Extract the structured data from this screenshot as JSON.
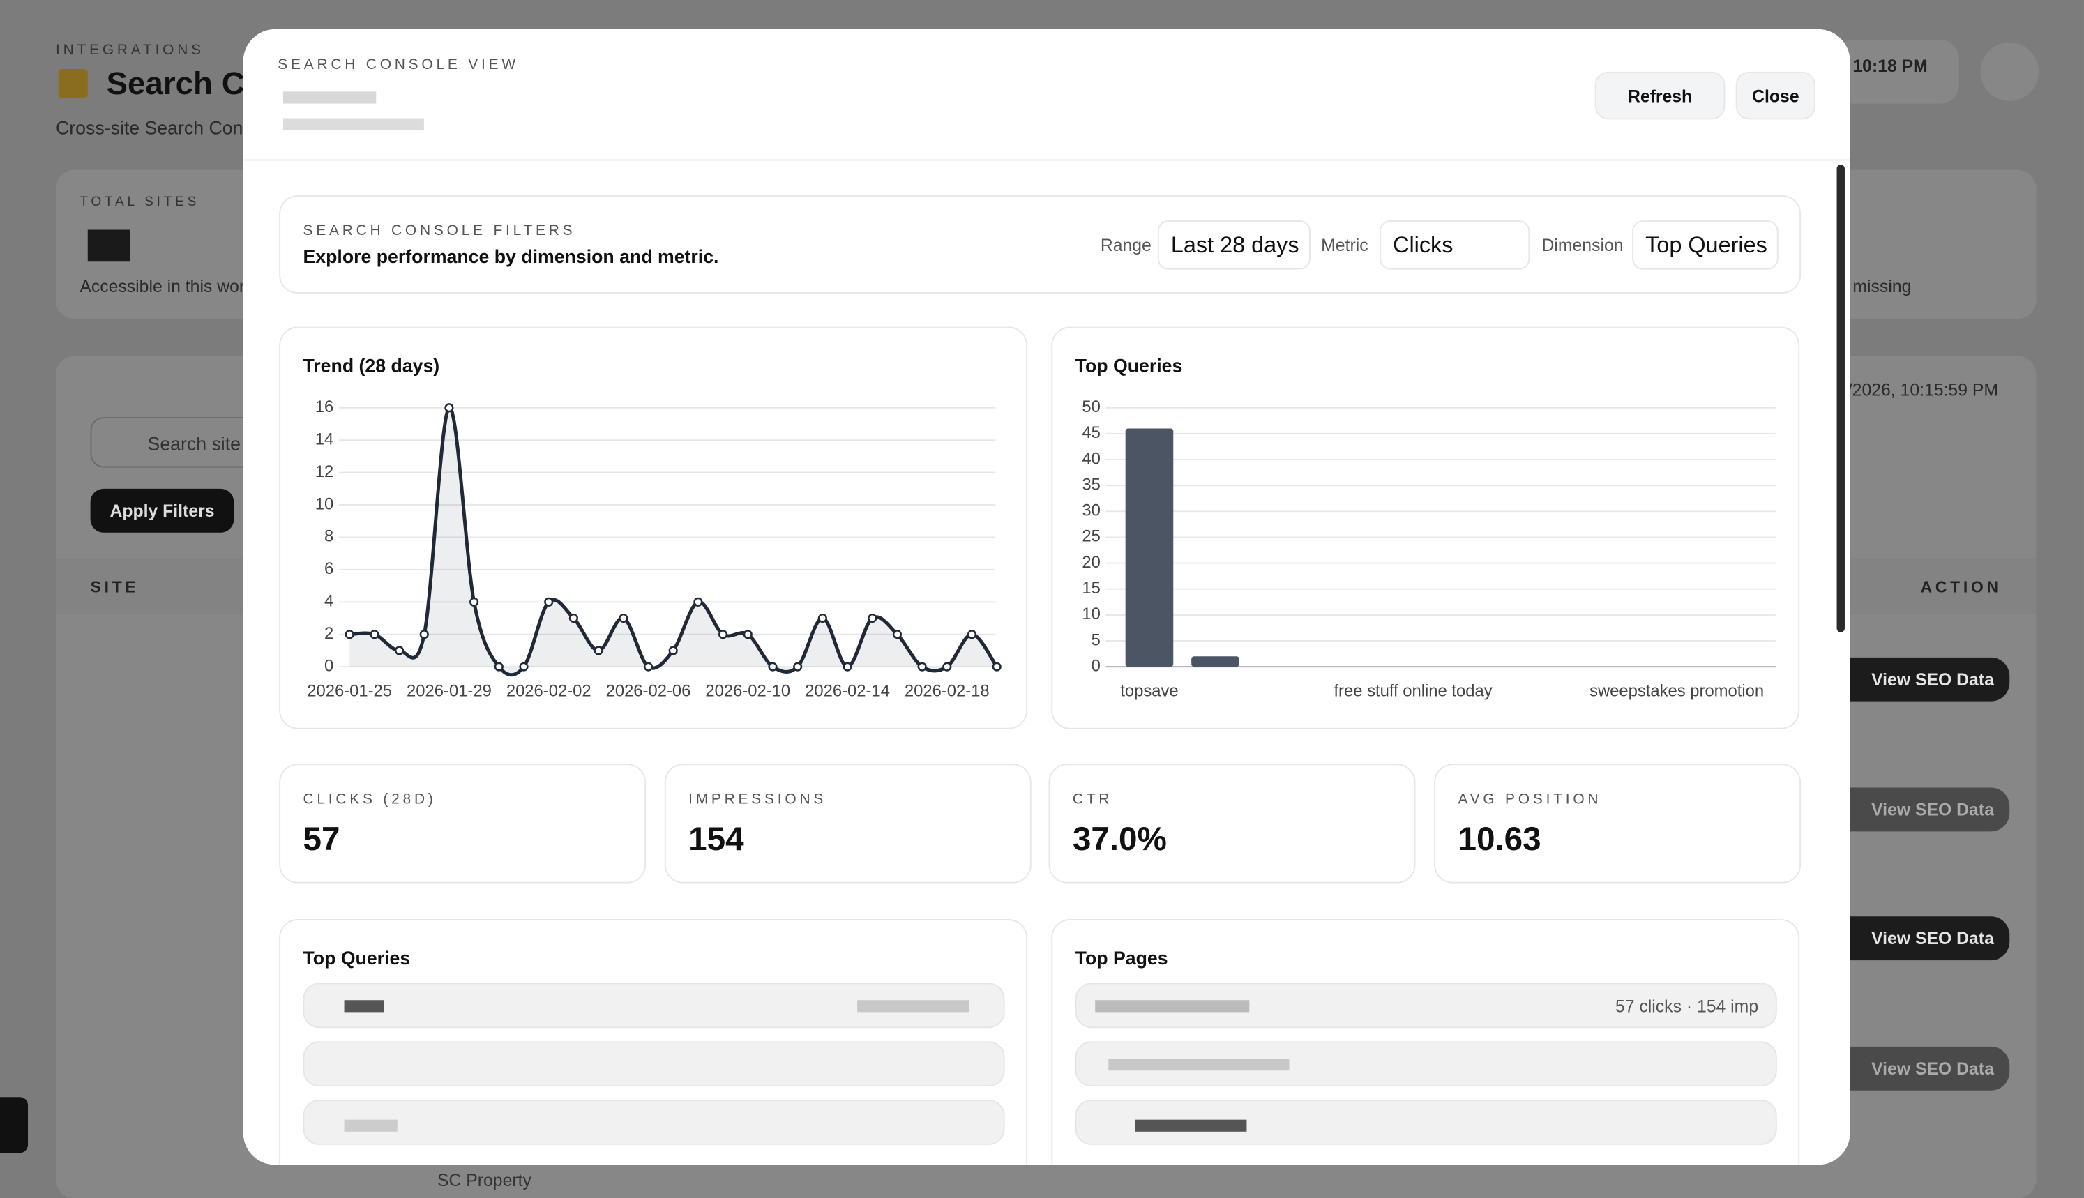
{
  "background": {
    "eyebrow": "INTEGRATIONS",
    "title": "Search C",
    "subtitle": "Cross-site Search Con",
    "total_sites": "TOTAL SITES",
    "total_note": "Accessible in this wor",
    "time": "10:18 PM",
    "missing": "missing",
    "updated": "/2026, 10:15:59 PM",
    "search_placeholder": "Search site",
    "apply": "Apply Filters",
    "col_site": "SITE",
    "col_action": "ACTION",
    "view": "View SEO Data",
    "property": "SC Property"
  },
  "modal": {
    "eyebrow": "SEARCH CONSOLE VIEW",
    "refresh": "Refresh",
    "close": "Close",
    "filters": {
      "eyebrow": "SEARCH CONSOLE FILTERS",
      "title": "Explore performance by dimension and metric.",
      "range_label": "Range",
      "range": "Last 28 days",
      "metric_label": "Metric",
      "metric": "Clicks",
      "dimension_label": "Dimension",
      "dimension": "Top Queries"
    },
    "stats": [
      {
        "label": "CLICKS (28D)",
        "value": "57"
      },
      {
        "label": "IMPRESSIONS",
        "value": "154"
      },
      {
        "label": "CTR",
        "value": "37.0%"
      },
      {
        "label": "AVG POSITION",
        "value": "10.63"
      }
    ],
    "top_queries": {
      "title": "Top Queries"
    },
    "top_pages": {
      "title": "Top Pages",
      "first_row": "57 clicks · 154 imp"
    }
  },
  "chart_data": [
    {
      "type": "line",
      "title": "Trend (28 days)",
      "x": [
        "2026-01-25",
        "2026-01-26",
        "2026-01-27",
        "2026-01-28",
        "2026-01-29",
        "2026-01-30",
        "2026-01-31",
        "2026-02-01",
        "2026-02-02",
        "2026-02-03",
        "2026-02-04",
        "2026-02-05",
        "2026-02-06",
        "2026-02-07",
        "2026-02-08",
        "2026-02-09",
        "2026-02-10",
        "2026-02-11",
        "2026-02-12",
        "2026-02-13",
        "2026-02-14",
        "2026-02-15",
        "2026-02-16",
        "2026-02-17",
        "2026-02-18",
        "2026-02-19",
        "2026-02-20"
      ],
      "values": [
        2,
        2,
        1,
        2,
        16,
        4,
        0,
        0,
        4,
        3,
        1,
        3,
        0,
        1,
        4,
        2,
        2,
        0,
        0,
        3,
        0,
        3,
        2,
        0,
        0,
        2,
        0
      ],
      "xticks": [
        "2026-01-25",
        "2026-01-29",
        "2026-02-02",
        "2026-02-06",
        "2026-02-10",
        "2026-02-14",
        "2026-02-18"
      ],
      "ylim": [
        0,
        16
      ],
      "yticks": [
        0,
        2,
        4,
        6,
        8,
        10,
        12,
        14,
        16
      ],
      "color": "#1f2937",
      "grid": true
    },
    {
      "type": "bar",
      "title": "Top Queries",
      "categories": [
        "topsave",
        null,
        null,
        null,
        "free stuff online today",
        null,
        null,
        null,
        "sweepstakes promotion",
        null
      ],
      "values": [
        46,
        2,
        0,
        0,
        0,
        0,
        0,
        0,
        0,
        0
      ],
      "ylim": [
        0,
        50
      ],
      "yticks": [
        0,
        5,
        10,
        15,
        20,
        25,
        30,
        35,
        40,
        45,
        50
      ],
      "color": "#4b5563",
      "grid": true
    }
  ]
}
